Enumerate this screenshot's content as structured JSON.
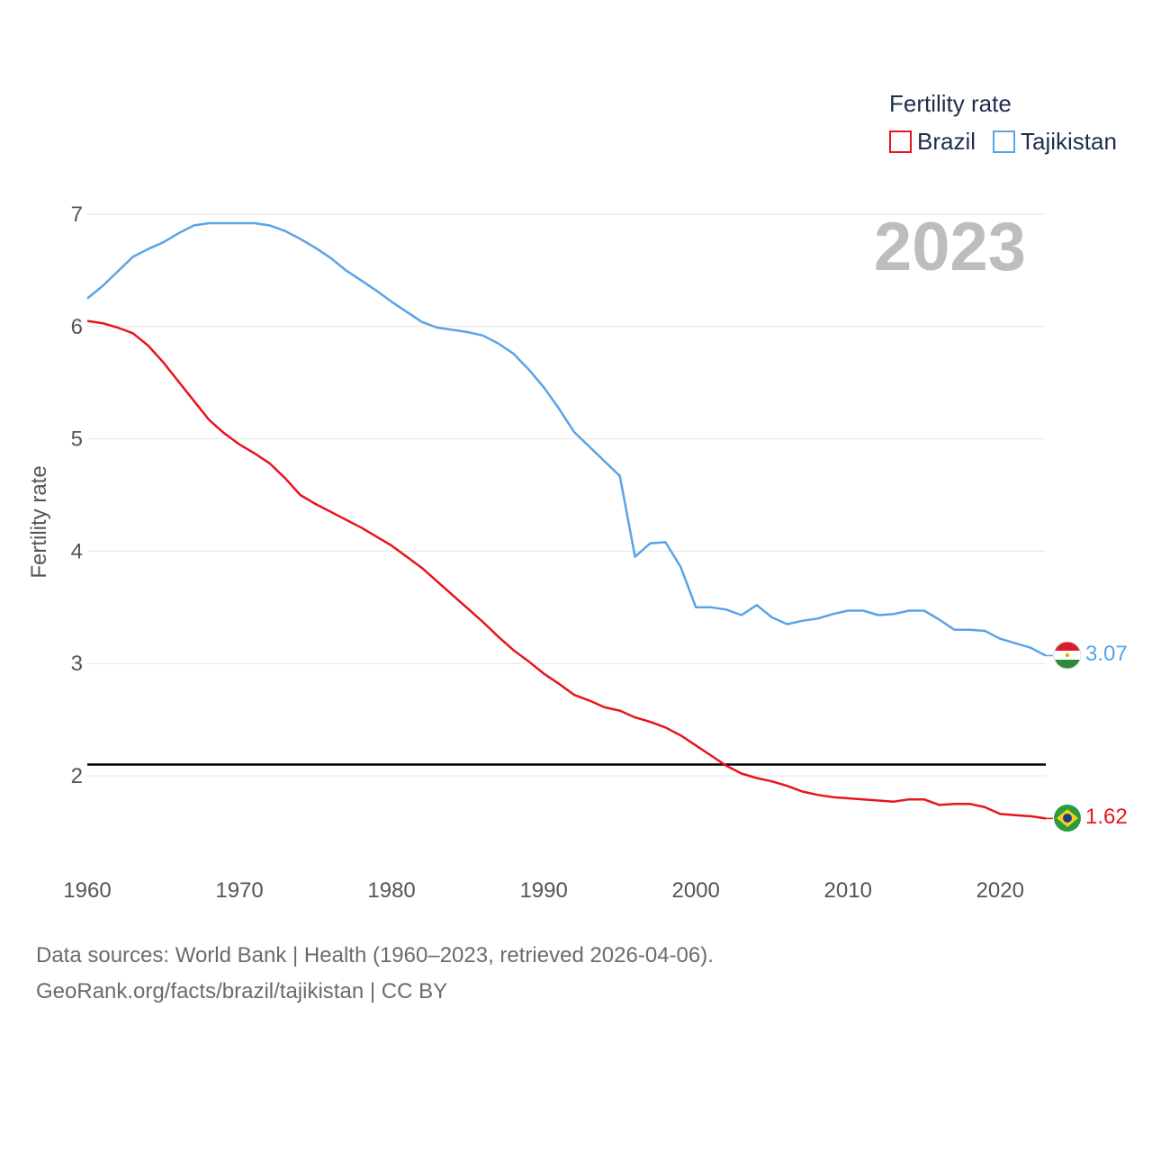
{
  "chart_data": {
    "type": "line",
    "legend_title": "Fertility rate",
    "ylabel": "Fertility rate",
    "year_label": "2023",
    "xlim": [
      1960,
      2023
    ],
    "ylim": [
      1.2,
      7.0
    ],
    "y_ticks": [
      2,
      3,
      4,
      5,
      6,
      7
    ],
    "x_ticks": [
      1960,
      1970,
      1980,
      1990,
      2000,
      2010,
      2020
    ],
    "reference_line": 2.1,
    "x": [
      1960,
      1961,
      1962,
      1963,
      1964,
      1965,
      1966,
      1967,
      1968,
      1969,
      1970,
      1971,
      1972,
      1973,
      1974,
      1975,
      1976,
      1977,
      1978,
      1979,
      1980,
      1981,
      1982,
      1983,
      1984,
      1985,
      1986,
      1987,
      1988,
      1989,
      1990,
      1991,
      1992,
      1993,
      1994,
      1995,
      1996,
      1997,
      1998,
      1999,
      2000,
      2001,
      2002,
      2003,
      2004,
      2005,
      2006,
      2007,
      2008,
      2009,
      2010,
      2011,
      2012,
      2013,
      2014,
      2015,
      2016,
      2017,
      2018,
      2019,
      2020,
      2021,
      2022,
      2023
    ],
    "series": [
      {
        "name": "Brazil",
        "color": "#e8141b",
        "end_label": "1.62",
        "values": [
          6.05,
          6.03,
          5.99,
          5.94,
          5.83,
          5.68,
          5.51,
          5.34,
          5.17,
          5.05,
          4.95,
          4.87,
          4.78,
          4.65,
          4.5,
          4.42,
          4.35,
          4.28,
          4.21,
          4.13,
          4.05,
          3.95,
          3.85,
          3.73,
          3.61,
          3.49,
          3.37,
          3.24,
          3.12,
          3.02,
          2.91,
          2.82,
          2.72,
          2.67,
          2.61,
          2.58,
          2.52,
          2.48,
          2.43,
          2.36,
          2.27,
          2.18,
          2.09,
          2.02,
          1.98,
          1.95,
          1.91,
          1.86,
          1.83,
          1.81,
          1.8,
          1.79,
          1.78,
          1.77,
          1.79,
          1.79,
          1.74,
          1.75,
          1.75,
          1.72,
          1.66,
          1.65,
          1.64,
          1.62
        ]
      },
      {
        "name": "Tajikistan",
        "color": "#5aa3e6",
        "end_label": "3.07",
        "values": [
          6.25,
          6.36,
          6.49,
          6.62,
          6.69,
          6.75,
          6.83,
          6.9,
          6.92,
          6.92,
          6.92,
          6.92,
          6.9,
          6.85,
          6.78,
          6.7,
          6.61,
          6.5,
          6.41,
          6.32,
          6.22,
          6.13,
          6.04,
          5.99,
          5.97,
          5.95,
          5.92,
          5.85,
          5.76,
          5.62,
          5.46,
          5.27,
          5.06,
          4.93,
          4.8,
          4.67,
          3.95,
          4.07,
          4.08,
          3.86,
          3.5,
          3.5,
          3.48,
          3.43,
          3.52,
          3.41,
          3.35,
          3.38,
          3.4,
          3.44,
          3.47,
          3.47,
          3.43,
          3.44,
          3.47,
          3.47,
          3.39,
          3.3,
          3.3,
          3.29,
          3.22,
          3.18,
          3.14,
          3.07
        ]
      }
    ]
  },
  "source": {
    "line1": "Data sources: World Bank | Health (1960–2023, retrieved 2026-04-06).",
    "line2": "GeoRank.org/facts/brazil/tajikistan | CC BY"
  }
}
